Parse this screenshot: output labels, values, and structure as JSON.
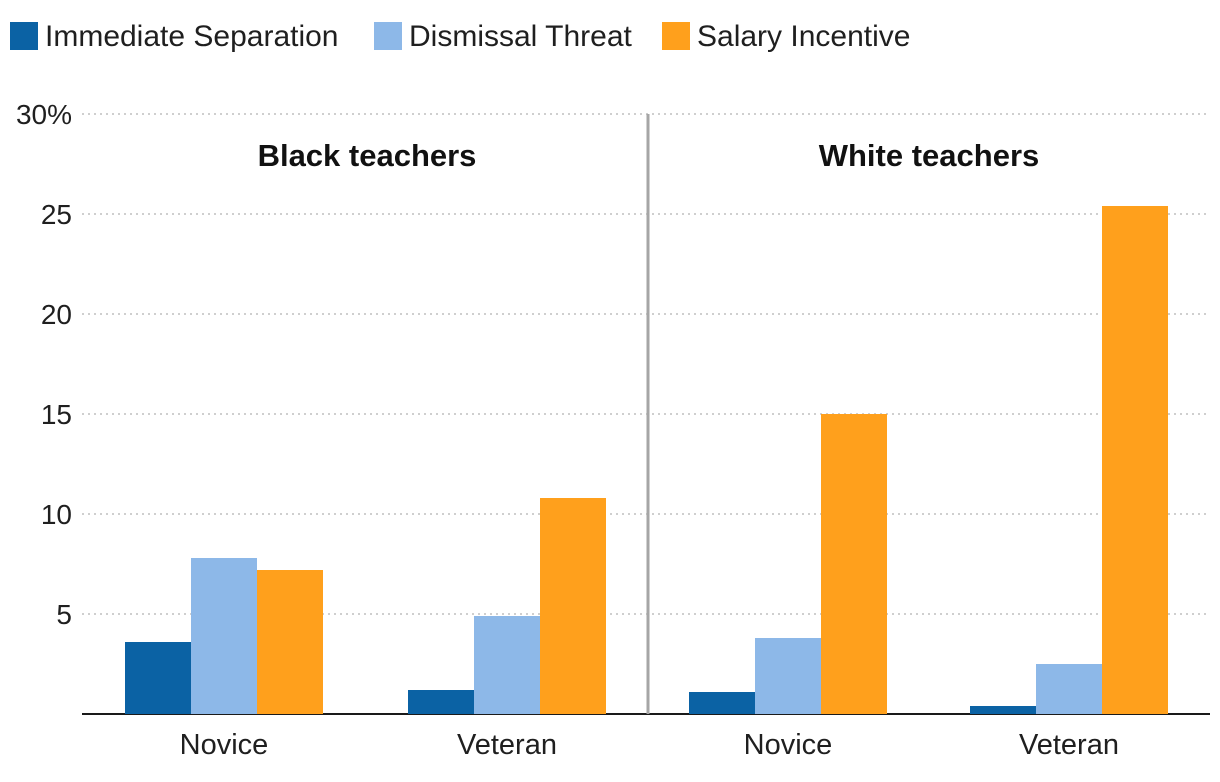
{
  "chart_data": {
    "type": "bar",
    "title": "",
    "xlabel": "",
    "ylabel": "",
    "ylim": [
      0,
      30
    ],
    "y_ticks": [
      {
        "value": 5,
        "label": "5"
      },
      {
        "value": 10,
        "label": "10"
      },
      {
        "value": 15,
        "label": "15"
      },
      {
        "value": 20,
        "label": "20"
      },
      {
        "value": 25,
        "label": "25"
      },
      {
        "value": 30,
        "label": "30%"
      }
    ],
    "grid": true,
    "legend_position": "top-left",
    "series": [
      {
        "name": "Immediate Separation",
        "color": "#0b62a4"
      },
      {
        "name": "Dismissal Threat",
        "color": "#8db8e8"
      },
      {
        "name": "Salary Incentive",
        "color": "#ffa01c"
      }
    ],
    "panels": [
      {
        "title": "Black teachers",
        "categories": [
          {
            "label": "Novice",
            "values": [
              3.6,
              7.8,
              7.2
            ]
          },
          {
            "label": "Veteran",
            "values": [
              1.2,
              4.9,
              10.8
            ]
          }
        ]
      },
      {
        "title": "White teachers",
        "categories": [
          {
            "label": "Novice",
            "values": [
              1.1,
              3.8,
              15.0
            ]
          },
          {
            "label": "Veteran",
            "values": [
              0.4,
              2.5,
              25.4
            ]
          }
        ]
      }
    ]
  }
}
